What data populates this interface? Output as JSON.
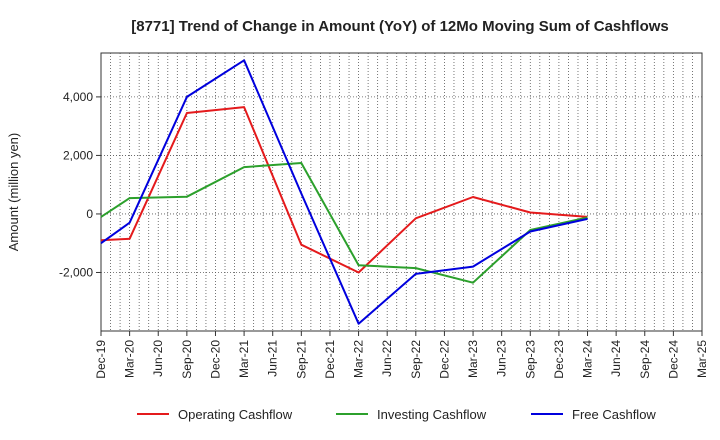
{
  "chart_data": {
    "type": "line",
    "title": "[8771]  Trend of Change in Amount (YoY) of 12Mo Moving Sum of Cashflows",
    "xlabel": "",
    "ylabel": "Amount (million yen)",
    "ylim": [
      -4000,
      5500
    ],
    "y_ticks": [
      -2000,
      0,
      2000,
      4000
    ],
    "y_tick_labels": [
      "-2,000",
      "0",
      "2,000",
      "4,000"
    ],
    "categories": [
      "Dec-19",
      "Mar-20",
      "Jun-20",
      "Sep-20",
      "Dec-20",
      "Mar-21",
      "Jun-21",
      "Sep-21",
      "Dec-21",
      "Mar-22",
      "Jun-22",
      "Sep-22",
      "Dec-22",
      "Mar-23",
      "Jun-23",
      "Sep-23",
      "Dec-23",
      "Mar-24",
      "Jun-24",
      "Sep-24",
      "Dec-24",
      "Mar-25"
    ],
    "grid": true,
    "legend_position": "bottom",
    "series": [
      {
        "name": "Operating Cashflow",
        "color": "#e41a1c",
        "points": [
          [
            "Dec-19",
            -900
          ],
          [
            "Mar-20",
            -850
          ],
          [
            "Sep-20",
            3450
          ],
          [
            "Mar-21",
            3650
          ],
          [
            "Sep-21",
            -1050
          ],
          [
            "Mar-22",
            -2000
          ],
          [
            "Sep-22",
            -150
          ],
          [
            "Mar-23",
            580
          ],
          [
            "Sep-23",
            50
          ],
          [
            "Mar-24",
            -100
          ]
        ]
      },
      {
        "name": "Investing Cashflow",
        "color": "#2ca02c",
        "points": [
          [
            "Dec-19",
            -100
          ],
          [
            "Mar-20",
            540
          ],
          [
            "Sep-20",
            590
          ],
          [
            "Mar-21",
            1600
          ],
          [
            "Sep-21",
            1740
          ],
          [
            "Mar-22",
            -1750
          ],
          [
            "Sep-22",
            -1850
          ],
          [
            "Mar-23",
            -2350
          ],
          [
            "Sep-23",
            -550
          ],
          [
            "Mar-24",
            -120
          ]
        ]
      },
      {
        "name": "Free Cashflow",
        "color": "#0000dd",
        "points": [
          [
            "Dec-19",
            -1000
          ],
          [
            "Mar-20",
            -300
          ],
          [
            "Sep-20",
            4000
          ],
          [
            "Mar-21",
            5250
          ],
          [
            "Sep-21",
            700
          ],
          [
            "Mar-22",
            -3750
          ],
          [
            "Sep-22",
            -2050
          ],
          [
            "Mar-23",
            -1800
          ],
          [
            "Sep-23",
            -600
          ],
          [
            "Mar-24",
            -170
          ]
        ]
      }
    ]
  }
}
